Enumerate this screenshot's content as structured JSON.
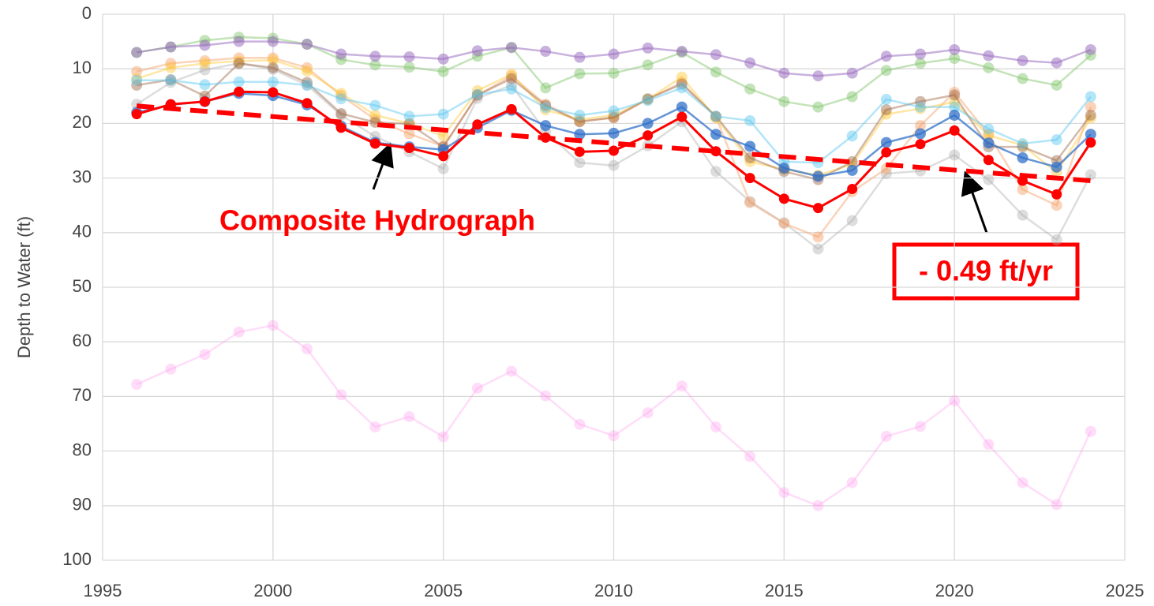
{
  "chart_data": {
    "type": "line",
    "ylabel": "Depth to Water (ft)",
    "x": [
      1996,
      1997,
      1998,
      1999,
      2000,
      2001,
      2002,
      2003,
      2004,
      2005,
      2006,
      2007,
      2008,
      2009,
      2010,
      2011,
      2012,
      2013,
      2014,
      2015,
      2016,
      2017,
      2018,
      2019,
      2020,
      2021,
      2022,
      2023,
      2024
    ],
    "series": [
      {
        "color": "#ff99ee55",
        "values": [
          67.8,
          65,
          62.3,
          58.2,
          57,
          61.3,
          69.7,
          75.6,
          73.7,
          77.4,
          68.5,
          65.4,
          69.9,
          75.1,
          77.2,
          73,
          68.1,
          75.6,
          81,
          87.6,
          90,
          85.8,
          77.3,
          75.5,
          70.8,
          78.8,
          85.8,
          89.8,
          76.4
        ]
      },
      {
        "color": "#aaaaaa66",
        "values": [
          16.5,
          12.5,
          10.2,
          9,
          10.1,
          13,
          18.5,
          22.4,
          25.2,
          28.3,
          15.4,
          13,
          21.5,
          27.2,
          27.7,
          24.1,
          19.7,
          28.8,
          34.3,
          38.2,
          43,
          37.8,
          29.2,
          28.7,
          25.8,
          30.3,
          36.8,
          41.3,
          29.4
        ]
      },
      {
        "color": "#f4a06a77",
        "values": [
          10.5,
          9,
          8.5,
          8,
          8,
          9.8,
          14.9,
          19.3,
          21.9,
          24.2,
          14.9,
          11.3,
          16.5,
          19.6,
          19,
          15.6,
          12.5,
          18.8,
          34.5,
          38.3,
          40.8,
          32.5,
          28.3,
          20.4,
          14.3,
          22,
          32.1,
          35,
          17
        ]
      },
      {
        "color": "#ffc93c77",
        "values": [
          11.8,
          9.8,
          9,
          8.6,
          8.4,
          10.4,
          14.5,
          18.5,
          20,
          22.3,
          14,
          11,
          17.5,
          19.3,
          18.5,
          15.6,
          11.5,
          19,
          27,
          28.4,
          29.5,
          27.5,
          18.3,
          17.3,
          16.1,
          22.2,
          24,
          29,
          19
        ]
      },
      {
        "color": "#9e6b4a77",
        "values": [
          13,
          12,
          15,
          9,
          9.8,
          12.5,
          18.2,
          19.8,
          20.1,
          24.3,
          14.8,
          11.8,
          16.7,
          19.7,
          18.9,
          15.5,
          12.8,
          18.7,
          26.3,
          28.8,
          30.3,
          27,
          17.5,
          16,
          14.8,
          24.3,
          24.3,
          26.8,
          18.5
        ]
      },
      {
        "color": "#5cc8f077",
        "values": [
          12.1,
          12.1,
          12.9,
          12.4,
          12.4,
          13,
          15.5,
          16.7,
          18.7,
          18.3,
          14.7,
          13.7,
          17.1,
          18.5,
          17.7,
          15.8,
          13.5,
          18.7,
          19.5,
          27,
          27.2,
          22.3,
          15.6,
          17,
          17,
          21,
          23.7,
          23,
          15.1
        ]
      },
      {
        "color": "#7fc46a77",
        "values": [
          7,
          6,
          4.8,
          4.2,
          4.4,
          5.5,
          8.3,
          9.3,
          9.7,
          10.5,
          7.7,
          6.1,
          13.5,
          10.9,
          10.8,
          9.3,
          7,
          10.6,
          13.7,
          16,
          17,
          15.1,
          10.3,
          9,
          8.1,
          9.8,
          11.8,
          13,
          7.5
        ]
      },
      {
        "color": "#9a6cc088",
        "values": [
          7,
          6,
          5.7,
          5,
          5,
          5.5,
          7.3,
          7.7,
          7.8,
          8.2,
          6.7,
          6.1,
          6.8,
          7.9,
          7.3,
          6.2,
          6.8,
          7.4,
          8.9,
          10.8,
          11.3,
          10.8,
          7.7,
          7.3,
          6.5,
          7.6,
          8.5,
          8.9,
          6.5
        ]
      },
      {
        "color": "#2f6fc8bb",
        "values": [
          18,
          16.6,
          16,
          14.5,
          14.9,
          16.6,
          20.5,
          23.5,
          24.3,
          24.8,
          20.8,
          17.6,
          20.4,
          22,
          21.8,
          20,
          17,
          22,
          24.2,
          28.2,
          29.7,
          28.6,
          23.5,
          21.9,
          18.5,
          23.6,
          26.3,
          28,
          22
        ]
      },
      {
        "color": "#ff0000",
        "values": [
          18.3,
          16.5,
          16,
          14.2,
          14.3,
          16.3,
          20.8,
          23.7,
          24.5,
          26,
          20.2,
          17.4,
          22.6,
          25.2,
          25,
          22.2,
          18.8,
          25.1,
          30,
          33.8,
          35.5,
          32,
          25.3,
          23.8,
          21.3,
          26.7,
          30.5,
          33,
          23.5
        ]
      }
    ],
    "trendline": {
      "x": [
        1996,
        2024
      ],
      "values": [
        16.8,
        30.5
      ],
      "color": "#ff0000"
    },
    "annotations": [
      "Composite Hydrograph",
      "- 0.49 ft/yr"
    ],
    "xlim": [
      1995,
      2025
    ],
    "xticks": [
      1995,
      2000,
      2005,
      2010,
      2015,
      2020,
      2025
    ],
    "ylim": [
      0,
      100
    ],
    "yticks": [
      0,
      10,
      20,
      30,
      40,
      50,
      60,
      70,
      80,
      90,
      100
    ],
    "y_inverted": true,
    "grid": true
  }
}
